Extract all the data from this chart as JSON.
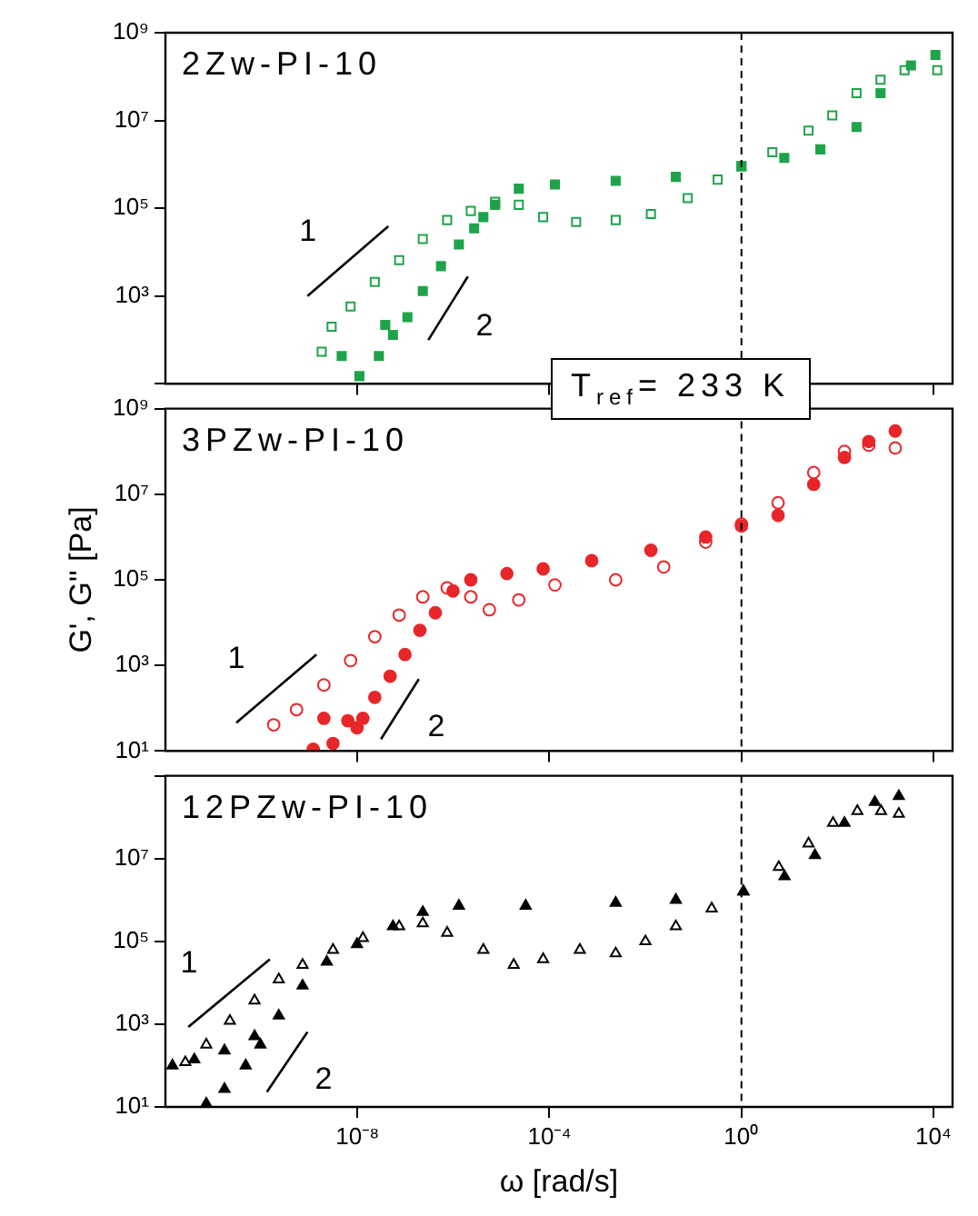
{
  "chart_data": [
    {
      "type": "scatter",
      "title": "2Zw-PI-10",
      "log": "xy",
      "grid": false,
      "legend": false,
      "tick_labels": "y",
      "xlim": [
        1e-12,
        25000
      ],
      "ylim": [
        10,
        1000000000.0
      ],
      "xticks": [
        {
          "value": 1e-08,
          "label": null
        },
        {
          "value": 0.0001,
          "label": null
        },
        {
          "value": 1,
          "label": null
        },
        {
          "value": 10000,
          "label": null
        }
      ],
      "yticks": [
        {
          "value": 10,
          "label": null
        },
        {
          "value": 1000,
          "label": "10³"
        },
        {
          "value": 100000,
          "label": "10⁵"
        },
        {
          "value": 10000000,
          "label": "10⁷"
        },
        {
          "value": 1000000000,
          "label": "10⁹"
        }
      ],
      "series": [
        {
          "color": "#1fa34a",
          "marker": "square",
          "x": [
            4.7e-09,
            1.1e-08,
            2.8e-08,
            3.8e-08,
            5.5e-08,
            1.1e-07,
            2.3e-07,
            5.5e-07,
            1.3e-06,
            2.7e-06,
            4.2e-06,
            7.4e-06,
            2.3e-05,
            0.00013,
            0.0024,
            0.043,
            1,
            7.8,
            44,
            250,
            790,
            3400,
            11000
          ],
          "values": [
            43,
            15,
            43,
            220,
            130,
            330,
            1300,
            4800,
            15000,
            35000,
            63000,
            120000,
            280000,
            350000,
            420000,
            520000,
            910000,
            1400000,
            2200000,
            7100000,
            42000000,
            180000000,
            310000000
          ]
        },
        {
          "color": "#1fa34a",
          "marker": "square",
          "x": [
            1.8e-09,
            2.9e-09,
            7.2e-09,
            2.3e-08,
            7.4e-08,
            2.3e-07,
            7.4e-07,
            2.3e-06,
            7.4e-06,
            2.3e-05,
            7.4e-05,
            0.00036,
            0.0024,
            0.013,
            0.076,
            0.32,
            1,
            4.4,
            25,
            78,
            250,
            790,
            2500,
            12000
          ],
          "values": [
            54,
            200,
            580,
            2100,
            6600,
            20000,
            54000,
            87000,
            140000,
            120000,
            63000,
            49000,
            54000,
            74000,
            170000,
            450000,
            910000,
            1900000,
            5900000,
            13000000,
            42000000,
            85000000,
            140000000,
            140000000
          ]
        },
        {
          "type": "line",
          "marker": "none",
          "color": "#000000",
          "x": [
            9.1e-10,
            4.4e-08
          ],
          "values": [
            1000,
            39000
          ]
        },
        {
          "type": "line",
          "marker": "none",
          "color": "#000000",
          "x": [
            3e-07,
            2e-06
          ],
          "values": [
            100,
            2800
          ]
        }
      ],
      "ref_lines": [
        {
          "axis": "x",
          "value": 1,
          "color": "#000000",
          "line_style": "dashed"
        }
      ],
      "annotations": [
        "1",
        "2",
        "T$_{ref}$= 233 K"
      ]
    },
    {
      "type": "scatter",
      "title": "3PZw-PI-10",
      "ylabel": "G', G'' [Pa]",
      "log": "xy",
      "grid": false,
      "legend": false,
      "tick_labels": "y",
      "xlim": [
        1e-12,
        25000
      ],
      "ylim": [
        10,
        1000000000.0
      ],
      "xticks": [
        {
          "value": 1e-08,
          "label": null
        },
        {
          "value": 0.0001,
          "label": null
        },
        {
          "value": 1,
          "label": null
        },
        {
          "value": 10000,
          "label": null
        }
      ],
      "yticks": [
        {
          "value": 10,
          "label": "10¹"
        },
        {
          "value": 1000,
          "label": "10³"
        },
        {
          "value": 100000,
          "label": "10⁵"
        },
        {
          "value": 10000000,
          "label": "10⁷"
        },
        {
          "value": 1000000000,
          "label": "10⁹"
        }
      ],
      "series": [
        {
          "color": "#e8262a",
          "marker": "circle",
          "x": [
            1.2e-09,
            2e-09,
            3.1e-09,
            6.3e-09,
            9.8e-09,
            1.3e-08,
            2.3e-08,
            4.8e-08,
            9.8e-08,
            2e-07,
            4.2e-07,
            9.8e-07,
            2.3e-06,
            1.3e-05,
            7.4e-05,
            0.00076,
            0.013,
            0.18,
            1,
            5.8,
            32,
            140,
            450,
            1600
          ],
          "values": [
            11,
            58,
            15,
            51,
            35,
            58,
            180,
            560,
            1800,
            6600,
            17000,
            55000,
            100000,
            140000,
            180000,
            280000,
            490000,
            1000000,
            1800000,
            3200000,
            17000000,
            72000000,
            170000000,
            300000000
          ]
        },
        {
          "color": "#e8262a",
          "marker": "circle",
          "x": [
            1.8e-10,
            5.4e-10,
            2e-09,
            7.2e-09,
            2.3e-08,
            7.4e-08,
            2.3e-07,
            7.4e-07,
            2.3e-06,
            5.6e-06,
            2.3e-05,
            0.00013,
            0.0024,
            0.024,
            0.18,
            1,
            5.8,
            32,
            140,
            450,
            1600
          ],
          "values": [
            41,
            93,
            350,
            1300,
            4700,
            15000,
            40000,
            65000,
            40000,
            20000,
            34000,
            76000,
            100000,
            200000,
            760000,
            2000000,
            6300000,
            32000000,
            100000000,
            140000000,
            120000000
          ]
        },
        {
          "type": "line",
          "marker": "none",
          "color": "#000000",
          "x": [
            3e-11,
            1.4e-09
          ],
          "values": [
            46,
            1800
          ]
        },
        {
          "type": "line",
          "marker": "none",
          "color": "#000000",
          "x": [
            3.1e-08,
            1.9e-07
          ],
          "values": [
            19,
            480
          ]
        }
      ],
      "ref_lines": [
        {
          "axis": "x",
          "value": 1,
          "color": "#000000",
          "line_style": "dashed"
        }
      ],
      "annotations": [
        "1",
        "2"
      ]
    },
    {
      "type": "scatter",
      "title": "12PZw-PI-10",
      "xlabel": "ω [rad/s]",
      "log": "xy",
      "grid": false,
      "legend": false,
      "xlim": [
        1e-12,
        25000
      ],
      "ylim": [
        10,
        1000000000.0
      ],
      "xticks": [
        {
          "value": 1e-08,
          "label": "10⁻⁸"
        },
        {
          "value": 0.0001,
          "label": "10⁻⁴"
        },
        {
          "value": 1,
          "label": "10⁰"
        },
        {
          "value": 10000,
          "label": "10⁴"
        }
      ],
      "yticks": [
        {
          "value": 10,
          "label": "10¹"
        },
        {
          "value": 1000,
          "label": "10³"
        },
        {
          "value": 100000,
          "label": "10⁵"
        },
        {
          "value": 10000000,
          "label": "10⁷"
        },
        {
          "value": 1000000000,
          "label": null
        }
      ],
      "series": [
        {
          "color": "#000000",
          "marker": "triangle",
          "x": [
            1.4e-12,
            4e-12,
            7.1e-12,
            1.7e-11,
            1.7e-11,
            4.7e-11,
            7.2e-11,
            9.5e-11,
            2.3e-10,
            7.2e-10,
            2.3e-09,
            9.8e-09,
            5.5e-08,
            2.3e-07,
            1.3e-06,
            3.2e-05,
            0.0024,
            0.043,
            1.1,
            7.9,
            34,
            140,
            600,
            1900
          ],
          "values": [
            100,
            140,
            12,
            230,
            27,
            100,
            510,
            320,
            1600,
            8500,
            32000,
            85000,
            230000,
            510000,
            720000,
            720000,
            850000,
            1000000,
            1600000,
            3700000,
            12000000,
            72000000,
            230000000,
            320000000
          ]
        },
        {
          "color": "#000000",
          "marker": "triangle",
          "x": [
            2.6e-12,
            7.1e-12,
            2.2e-11,
            7.2e-11,
            2.3e-10,
            7.2e-10,
            3.1e-09,
            1.3e-08,
            7.4e-08,
            2.3e-07,
            7.4e-07,
            4.2e-06,
            1.8e-05,
            7.4e-05,
            0.00043,
            0.0024,
            0.01,
            0.043,
            0.24,
            1.1,
            6.0,
            25,
            81,
            260,
            810,
            1900
          ],
          "values": [
            120,
            320,
            1200,
            3700,
            12000,
            27000,
            62000,
            120000,
            230000,
            270000,
            160000,
            62000,
            27000,
            37000,
            62000,
            51000,
            100000,
            230000,
            620000,
            1600000,
            6200000,
            23000000,
            72000000,
            140000000,
            140000000,
            120000000
          ]
        },
        {
          "type": "line",
          "marker": "none",
          "color": "#000000",
          "x": [
            3e-12,
            1.5e-10
          ],
          "values": [
            850,
            37000
          ]
        },
        {
          "type": "line",
          "marker": "none",
          "color": "#000000",
          "x": [
            1.3e-10,
            9.1e-10
          ],
          "values": [
            23,
            650
          ]
        }
      ],
      "ref_lines": [
        {
          "axis": "x",
          "value": 1,
          "color": "#000000",
          "line_style": "dashed"
        }
      ],
      "annotations": [
        "1",
        "2"
      ]
    }
  ]
}
